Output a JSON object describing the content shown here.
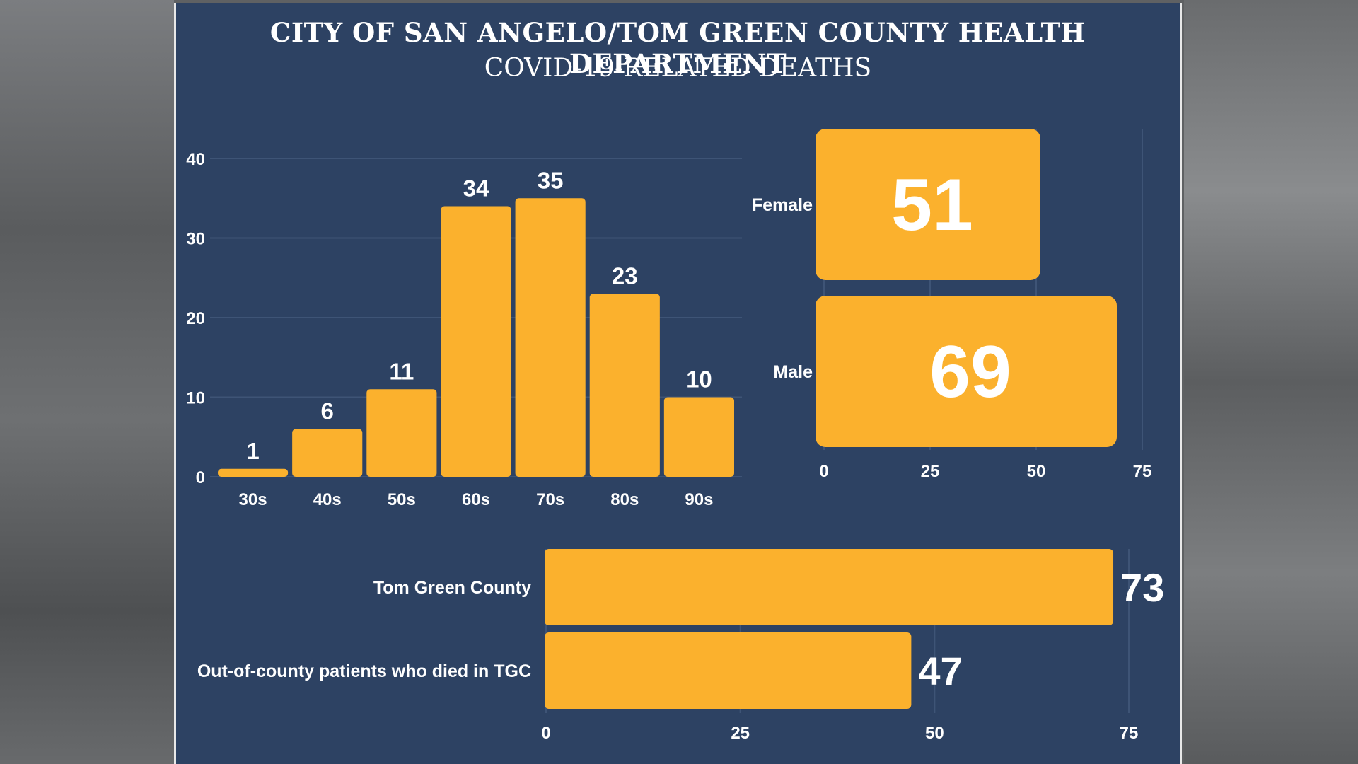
{
  "header": {
    "title": "CITY OF SAN ANGELO/TOM GREEN COUNTY HEALTH DEPARTMENT",
    "subtitle": "COVID-19-RELATED DEATHS"
  },
  "colors": {
    "background": "#2d4263",
    "bar": "#fbb12d",
    "text": "#ffffff",
    "grid": "#3e5476"
  },
  "chart_data": [
    {
      "id": "age",
      "type": "bar",
      "title": "",
      "xlabel": "",
      "ylabel": "",
      "categories": [
        "30s",
        "40s",
        "50s",
        "60s",
        "70s",
        "80s",
        "90s"
      ],
      "values": [
        1,
        6,
        11,
        34,
        35,
        23,
        10
      ],
      "ylim": [
        0,
        40
      ],
      "yticks": [
        "0",
        "10",
        "20",
        "30",
        "40"
      ],
      "grid": true
    },
    {
      "id": "gender",
      "type": "bar",
      "orientation": "horizontal",
      "categories": [
        "Female",
        "Male"
      ],
      "values": [
        51,
        69
      ],
      "xlim": [
        0,
        75
      ],
      "xticks": [
        "0",
        "25",
        "50",
        "75"
      ],
      "grid": true
    },
    {
      "id": "residence",
      "type": "bar",
      "orientation": "horizontal",
      "categories": [
        "Tom Green County",
        "Out-of-county patients who died in TGC"
      ],
      "values": [
        73,
        47
      ],
      "xlim": [
        0,
        75
      ],
      "xticks": [
        "0",
        "25",
        "50",
        "75"
      ],
      "grid": true
    }
  ]
}
